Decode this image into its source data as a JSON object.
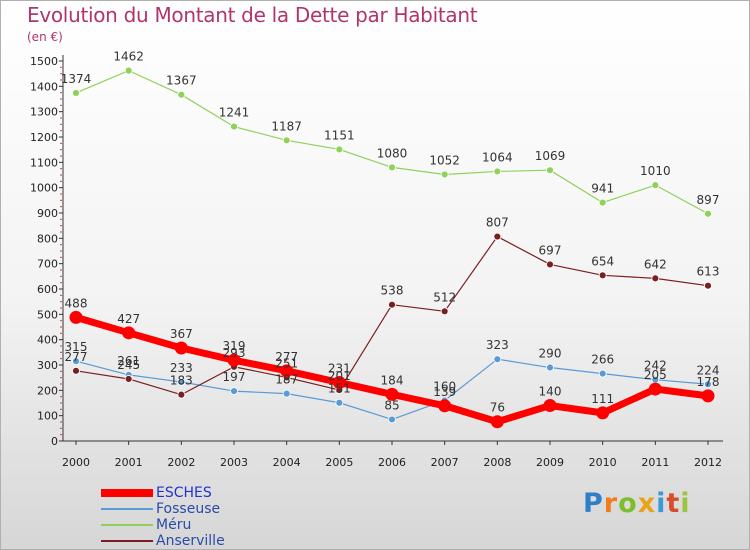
{
  "title": "Evolution du Montant de la Dette par Habitant",
  "subtitle": "(en €)",
  "logo": {
    "letters": [
      "P",
      "r",
      "o",
      "x",
      "i",
      "t",
      "i"
    ]
  },
  "chart_data": {
    "type": "line",
    "x": [
      "2000",
      "2001",
      "2002",
      "2003",
      "2004",
      "2005",
      "2006",
      "2007",
      "2008",
      "2009",
      "2010",
      "2011",
      "2012"
    ],
    "ylim": [
      0,
      1500
    ],
    "yticks": [
      0,
      100,
      200,
      300,
      400,
      500,
      600,
      700,
      800,
      900,
      1000,
      1100,
      1200,
      1300,
      1400,
      1500
    ],
    "grid": false,
    "legend_position": "bottom-left",
    "series": [
      {
        "name": "ESCHES",
        "color": "#ff0000",
        "values": [
          488,
          427,
          367,
          319,
          277,
          231,
          184,
          139,
          76,
          140,
          111,
          205,
          178
        ]
      },
      {
        "name": "Fosseuse",
        "color": "#5b9bd5",
        "values": [
          315,
          261,
          233,
          197,
          187,
          151,
          85,
          160,
          323,
          290,
          266,
          242,
          224
        ]
      },
      {
        "name": "Méru",
        "color": "#8fd15a",
        "values": [
          1374,
          1462,
          1367,
          1241,
          1187,
          1151,
          1080,
          1052,
          1064,
          1069,
          941,
          1010,
          897
        ]
      },
      {
        "name": "Anserville",
        "color": "#7a1f1f",
        "values": [
          277,
          245,
          183,
          293,
          251,
          201,
          538,
          512,
          807,
          697,
          654,
          642,
          613
        ]
      }
    ],
    "point_labels": [
      {
        "series": "ESCHES",
        "labels": [
          "488",
          "427",
          "367",
          "319",
          "277",
          "231",
          "184",
          "139",
          "76",
          "140",
          "111",
          "205",
          "178"
        ]
      },
      {
        "series": "Fosseuse",
        "labels": [
          "315",
          "261",
          "233",
          "197",
          "187",
          "151",
          "85",
          "160",
          "323",
          "290",
          "266",
          "242",
          "224"
        ]
      },
      {
        "series": "Méru",
        "labels": [
          "1374",
          "1462",
          "1367",
          "1241",
          "1187",
          "1151",
          "1080",
          "1052",
          "1064",
          "1069",
          "941",
          "1010",
          "897"
        ]
      },
      {
        "series": "Anserville",
        "labels": [
          "277",
          "245",
          "183",
          "293",
          "251",
          "201",
          "538",
          "512",
          "807",
          "697",
          "654",
          "642",
          "613"
        ]
      }
    ]
  }
}
